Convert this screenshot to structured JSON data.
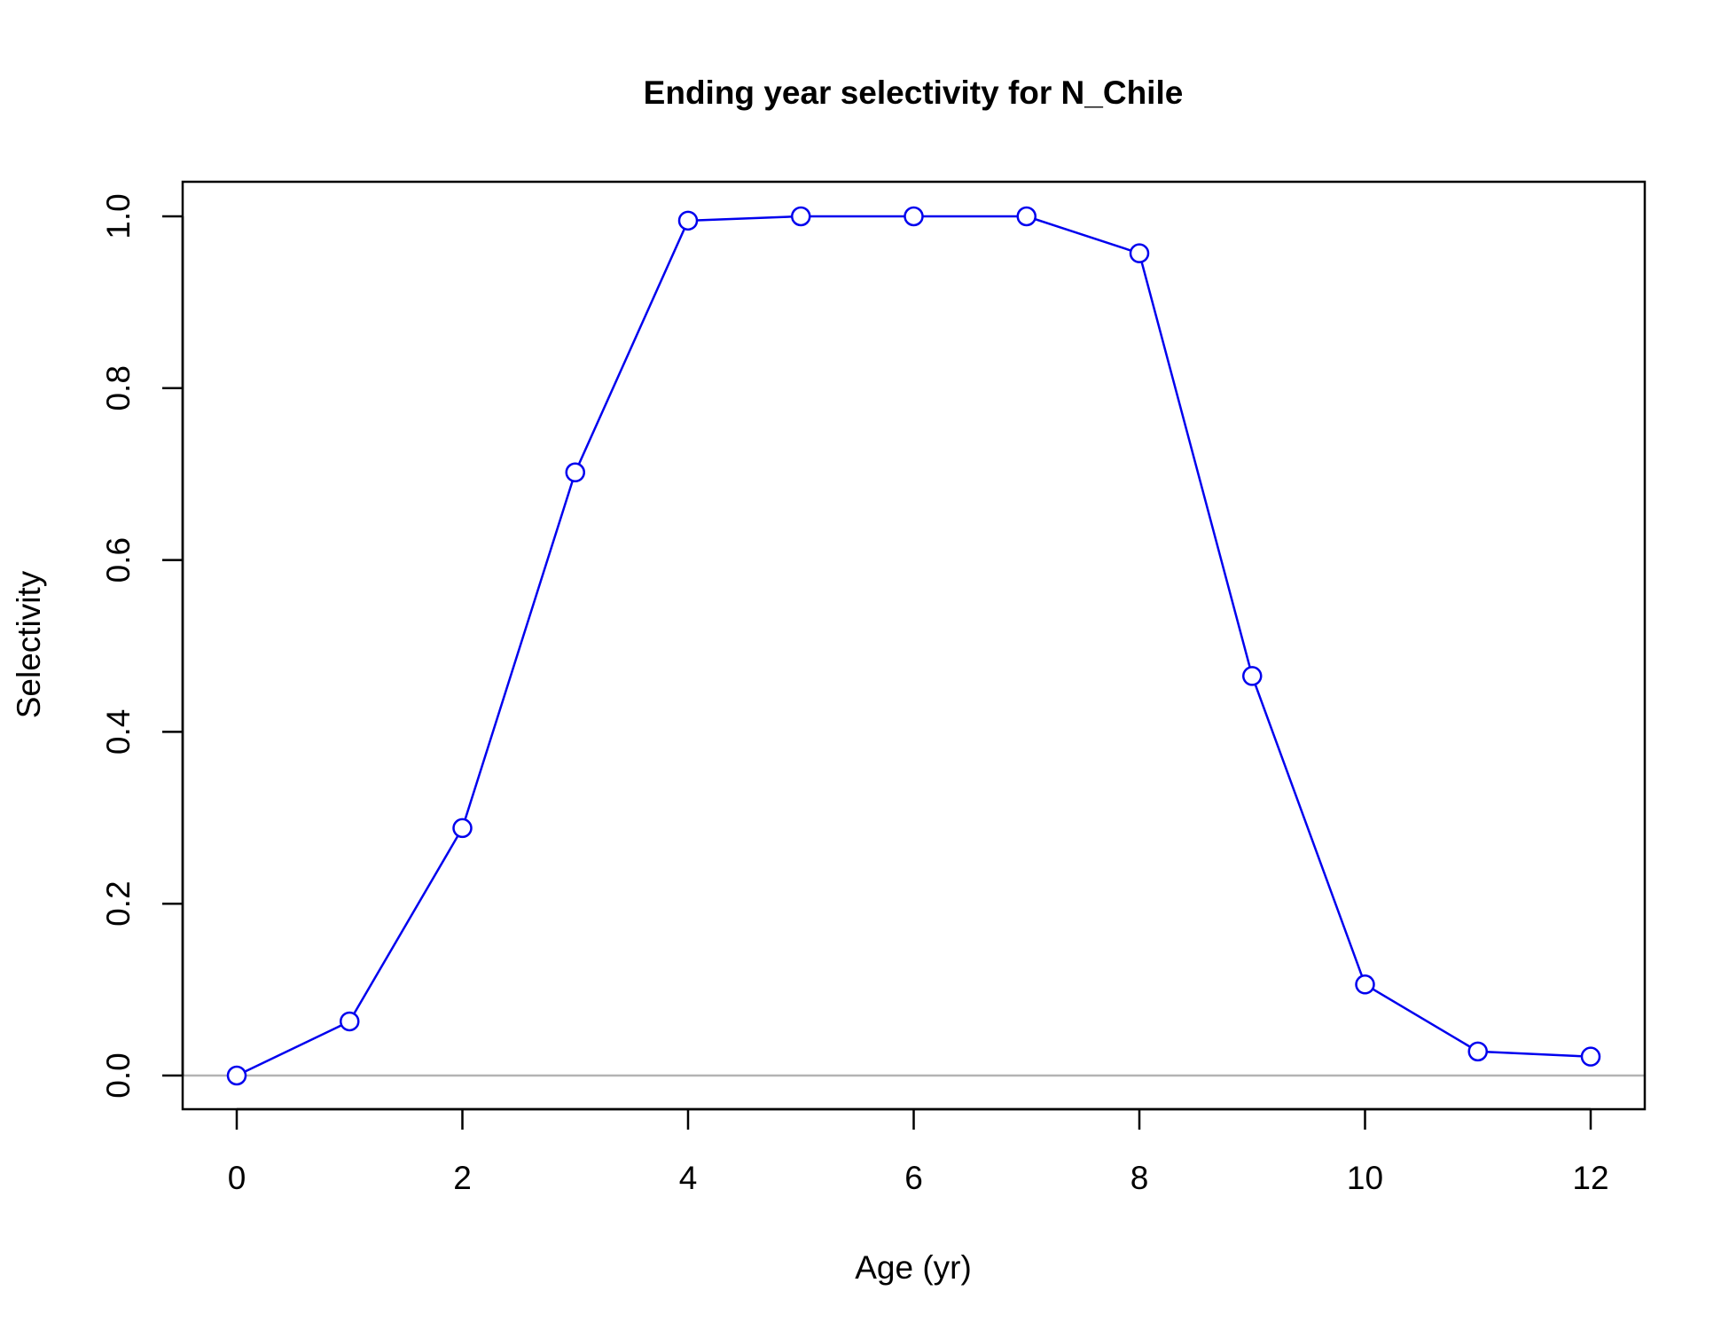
{
  "chart_data": {
    "type": "line",
    "title": "Ending year selectivity for N_Chile",
    "xlabel": "Age (yr)",
    "ylabel": "Selectivity",
    "xlim": [
      0,
      12
    ],
    "ylim": [
      0,
      1
    ],
    "x_ticks": [
      0,
      2,
      4,
      6,
      8,
      10,
      12
    ],
    "y_ticks": [
      0.0,
      0.2,
      0.4,
      0.6,
      0.8,
      1.0
    ],
    "x_tick_labels": [
      "0",
      "2",
      "4",
      "6",
      "8",
      "10",
      "12"
    ],
    "y_tick_labels": [
      "0.0",
      "0.2",
      "0.4",
      "0.6",
      "0.8",
      "1.0"
    ],
    "reference_line_y": 0,
    "grid": false,
    "series": [
      {
        "color": "#0000ee",
        "marker": "open-circle",
        "x": [
          0,
          1,
          2,
          3,
          4,
          5,
          6,
          7,
          8,
          9,
          10,
          11,
          12
        ],
        "y": [
          0.0,
          0.063,
          0.288,
          0.702,
          0.995,
          1.0,
          1.0,
          1.0,
          0.957,
          0.465,
          0.106,
          0.028,
          0.022
        ]
      }
    ],
    "colors": {
      "series": "#0000ee",
      "reference_line": "#b3b3b3",
      "axis": "#000000"
    }
  }
}
